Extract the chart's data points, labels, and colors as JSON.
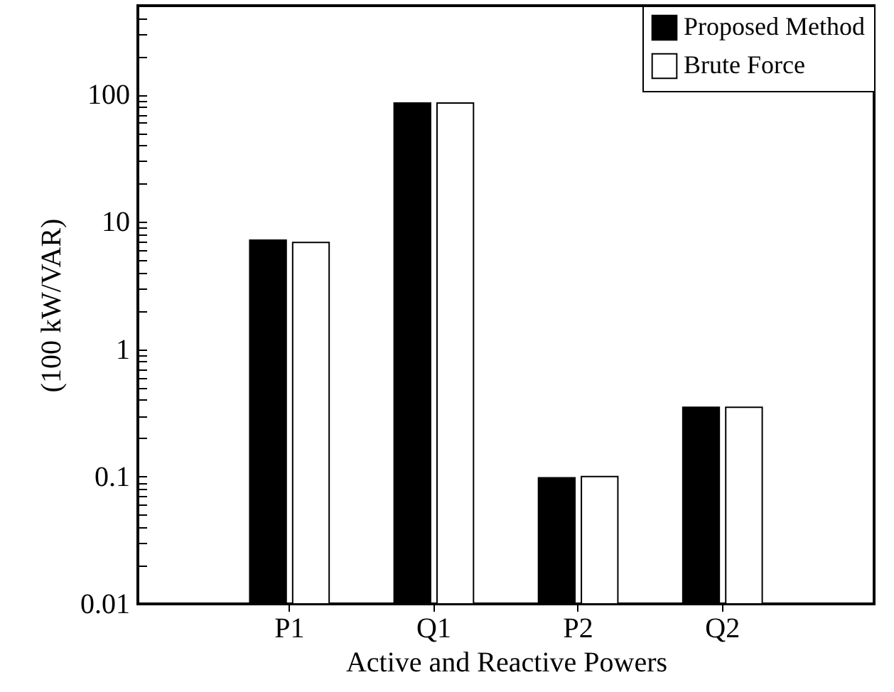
{
  "chart_data": {
    "type": "bar",
    "xlabel": "Active and Reactive Powers",
    "ylabel": "(100 kW/VAR)",
    "categories": [
      "P1",
      "Q1",
      "P2",
      "Q2"
    ],
    "series": [
      {
        "name": "Proposed Method",
        "color": "#000000",
        "values": [
          7.2,
          86,
          0.098,
          0.35
        ]
      },
      {
        "name": "Brute Force",
        "color": "#ffffff",
        "values": [
          6.9,
          86,
          0.1,
          0.35
        ]
      }
    ],
    "log": true,
    "ylim": [
      0.01,
      500
    ],
    "yticks": [
      0.01,
      {
        "value": 0.02,
        "label": null
      },
      {
        "value": 0.03,
        "label": null
      },
      {
        "value": 0.04,
        "label": null
      },
      {
        "value": 0.05,
        "label": null
      },
      {
        "value": 0.06,
        "label": null
      },
      {
        "value": 0.07,
        "label": null
      },
      {
        "value": 0.08,
        "label": null
      },
      {
        "value": 0.09,
        "label": null
      },
      0.1,
      {
        "value": 0.2,
        "label": null
      },
      {
        "value": 0.3,
        "label": null
      },
      {
        "value": 0.4,
        "label": null
      },
      {
        "value": 0.5,
        "label": null
      },
      {
        "value": 0.6,
        "label": null
      },
      {
        "value": 0.7,
        "label": null
      },
      {
        "value": 0.8,
        "label": null
      },
      {
        "value": 0.9,
        "label": null
      },
      1,
      {
        "value": 2,
        "label": null
      },
      {
        "value": 3,
        "label": null
      },
      {
        "value": 4,
        "label": null
      },
      {
        "value": 5,
        "label": null
      },
      {
        "value": 6,
        "label": null
      },
      {
        "value": 7,
        "label": null
      },
      {
        "value": 8,
        "label": null
      },
      {
        "value": 9,
        "label": null
      },
      10,
      {
        "value": 20,
        "label": null
      },
      {
        "value": 30,
        "label": null
      },
      {
        "value": 40,
        "label": null
      },
      {
        "value": 50,
        "label": null
      },
      {
        "value": 60,
        "label": null
      },
      {
        "value": 70,
        "label": null
      },
      {
        "value": 80,
        "label": null
      },
      {
        "value": 90,
        "label": null
      },
      100,
      {
        "value": 200,
        "label": null
      },
      {
        "value": 300,
        "label": null
      },
      {
        "value": 400,
        "label": null
      },
      {
        "value": 500,
        "label": null
      }
    ],
    "legend": "top right",
    "grid": false
  }
}
